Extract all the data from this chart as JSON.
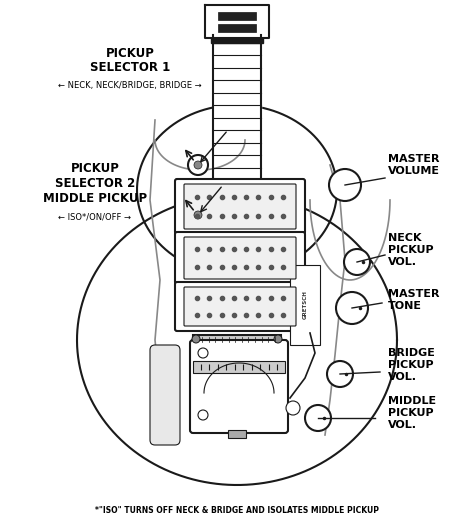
{
  "background_color": "#ffffff",
  "line_color": "#1a1a1a",
  "text_color": "#000000",
  "fig_width": 4.74,
  "fig_height": 5.27,
  "dpi": 100,
  "labels": {
    "pickup_selector_1_line1": "PICKUP",
    "pickup_selector_1_line2": "SELECTOR 1",
    "ps1_sub": "← NECK, NECK/BRIDGE, BRIDGE →",
    "pickup_selector_2_line1": "PICKUP",
    "pickup_selector_2_line2": "SELECTOR 2",
    "pickup_selector_2_line3": "MIDDLE PICKUP",
    "ps2_sub": "← ISO*/ON/OFF →",
    "master_volume": "MASTER\nVOLUME",
    "neck_pickup_vol": "NECK\nPICKUP\nVOL.",
    "master_tone": "MASTER\nTONE",
    "bridge_pickup_vol": "BRIDGE\nPICKUP\nVOL.",
    "middle_pickup_vol": "MIDDLE\nPICKUP\nVOL.",
    "footer": "*\"ISO\" TURNS OFF NECK & BRIDGE AND ISOLATES MIDDLE PICKUP"
  }
}
